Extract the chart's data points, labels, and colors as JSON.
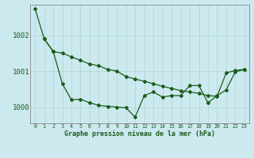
{
  "xlabel": "Graphe pression niveau de la mer (hPa)",
  "x_ticks": [
    0,
    1,
    2,
    3,
    4,
    5,
    6,
    7,
    8,
    9,
    10,
    11,
    12,
    13,
    14,
    15,
    16,
    17,
    18,
    19,
    20,
    21,
    22,
    23
  ],
  "ylim": [
    999.55,
    1002.85
  ],
  "yticks": [
    1000,
    1001,
    1002
  ],
  "background_color": "#cce9f0",
  "grid_color": "#b0d4cc",
  "line_color": "#1a5c1a",
  "series1_x": [
    0,
    1,
    2,
    3,
    4,
    5,
    6,
    7,
    8,
    9,
    10,
    11,
    12,
    13,
    14,
    15,
    16,
    17,
    18,
    19,
    20,
    21,
    22,
    23
  ],
  "series1_y": [
    1002.75,
    1001.9,
    1001.55,
    1001.5,
    1001.4,
    1001.3,
    1001.2,
    1001.15,
    1001.05,
    1001.0,
    1000.85,
    1000.78,
    1000.72,
    1000.65,
    1000.58,
    1000.52,
    1000.46,
    1000.42,
    1000.38,
    1000.32,
    1000.3,
    1000.95,
    1001.02,
    1001.05
  ],
  "series2_x": [
    1,
    2,
    3,
    4,
    5,
    6,
    7,
    8,
    9,
    10,
    11,
    12,
    13,
    14,
    15,
    16,
    17,
    18,
    19,
    20,
    21,
    22,
    23
  ],
  "series2_y": [
    1001.9,
    1001.55,
    1000.65,
    1000.2,
    1000.22,
    1000.12,
    1000.05,
    1000.02,
    1000.0,
    999.98,
    999.72,
    1000.32,
    1000.42,
    1000.28,
    1000.32,
    1000.32,
    1000.6,
    1000.6,
    1000.12,
    1000.32,
    1000.48,
    1000.98,
    1001.05
  ]
}
